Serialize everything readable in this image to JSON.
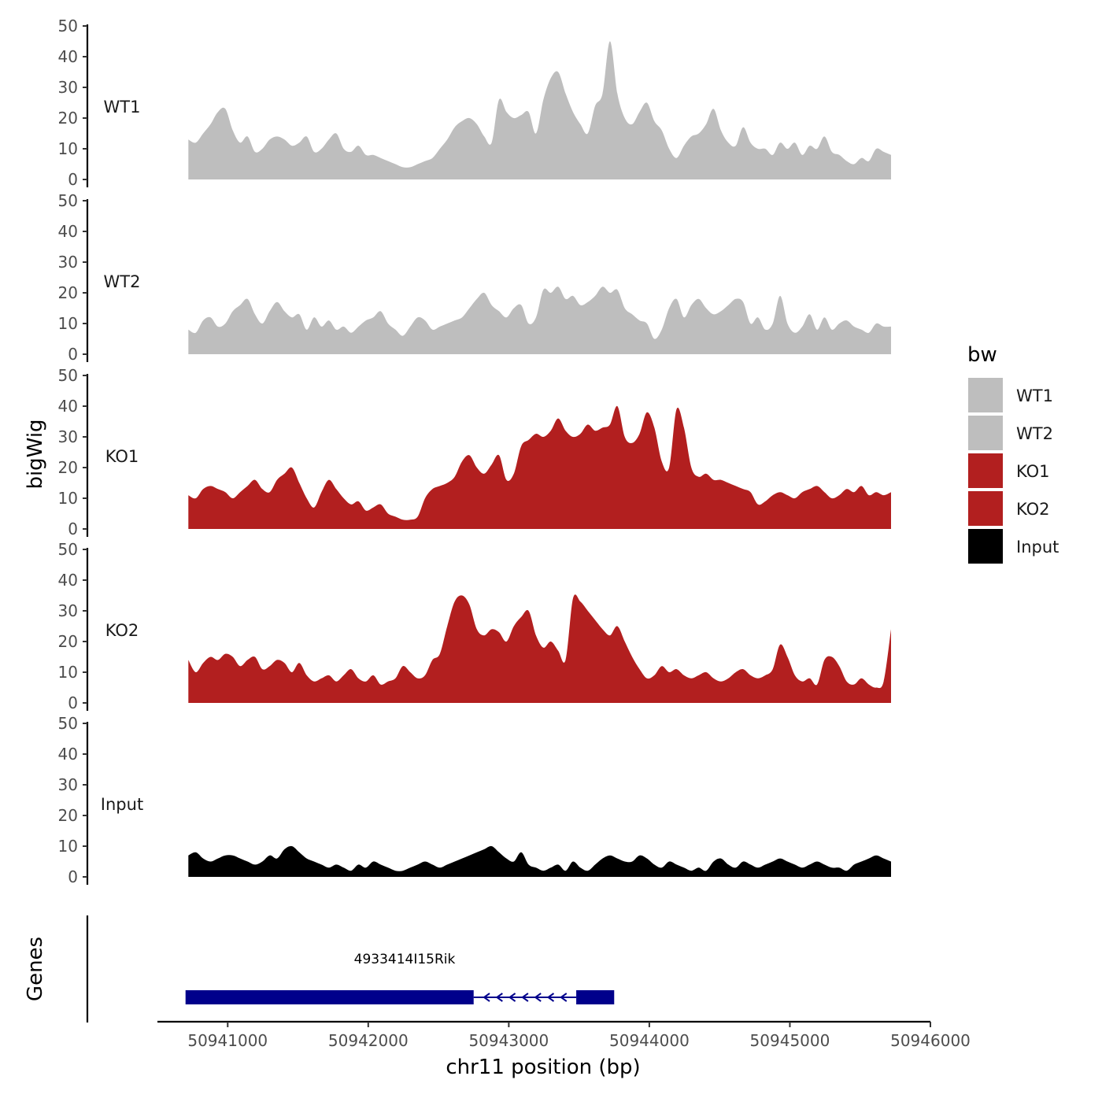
{
  "chart_data": {
    "type": "area",
    "colors": {
      "WT": "#bebebe",
      "KO": "#b21f1f",
      "Input": "#000000",
      "gene": "#00008b",
      "axis": "#000000"
    },
    "ylabel": "bigWig",
    "ylim": [
      0,
      50
    ],
    "yticks": [
      "0",
      "10",
      "20",
      "30",
      "40",
      "50"
    ],
    "xlim": [
      50940500,
      50946000
    ],
    "x_start": 50940720,
    "x_end": 50945720,
    "xticks": [
      50941000,
      50942000,
      50943000,
      50944000,
      50945000,
      50946000
    ],
    "xtick_labels": [
      "50941000",
      "50942000",
      "50943000",
      "50944000",
      "50945000",
      "50946000"
    ],
    "xlabel": "chr11 position (bp)",
    "series": [
      {
        "name": "WT1",
        "color": "#bebebe",
        "values": [
          13,
          12,
          15,
          18,
          22,
          23,
          16,
          12,
          14,
          9,
          10,
          13,
          14,
          13,
          11,
          12,
          14,
          9,
          10,
          13,
          15,
          10,
          9,
          11,
          8,
          8,
          7,
          6,
          5,
          4,
          4,
          5,
          6,
          7,
          10,
          13,
          17,
          19,
          20,
          18,
          14,
          12,
          26,
          22,
          20,
          21,
          22,
          15,
          26,
          33,
          35,
          28,
          22,
          18,
          15,
          24,
          28,
          45,
          28,
          20,
          18,
          22,
          25,
          19,
          16,
          10,
          7,
          11,
          14,
          15,
          18,
          23,
          16,
          12,
          11,
          17,
          12,
          10,
          10,
          8,
          12,
          10,
          12,
          8,
          11,
          10,
          14,
          9,
          8,
          6,
          5,
          7,
          6,
          10,
          9,
          8
        ]
      },
      {
        "name": "WT2",
        "color": "#bebebe",
        "values": [
          8,
          7,
          11,
          12,
          9,
          10,
          14,
          16,
          18,
          13,
          10,
          14,
          17,
          14,
          12,
          13,
          8,
          12,
          9,
          11,
          8,
          9,
          7,
          9,
          11,
          12,
          14,
          10,
          8,
          6,
          9,
          12,
          11,
          8,
          9,
          10,
          11,
          12,
          15,
          18,
          20,
          16,
          14,
          12,
          15,
          16,
          10,
          12,
          21,
          20,
          22,
          18,
          19,
          16,
          17,
          19,
          22,
          20,
          21,
          15,
          13,
          11,
          10,
          5,
          8,
          15,
          18,
          12,
          16,
          18,
          15,
          13,
          14,
          16,
          18,
          17,
          10,
          12,
          8,
          10,
          19,
          10,
          7,
          9,
          13,
          8,
          12,
          8,
          10,
          11,
          9,
          8,
          7,
          10,
          9,
          9
        ]
      },
      {
        "name": "KO1",
        "color": "#b21f1f",
        "values": [
          11,
          10,
          13,
          14,
          13,
          12,
          10,
          12,
          14,
          16,
          13,
          12,
          16,
          18,
          20,
          15,
          10,
          7,
          12,
          16,
          13,
          10,
          8,
          9,
          6,
          7,
          8,
          5,
          4,
          3,
          3,
          4,
          10,
          13,
          14,
          15,
          17,
          22,
          24,
          20,
          18,
          21,
          24,
          16,
          18,
          27,
          29,
          31,
          30,
          32,
          36,
          32,
          30,
          31,
          34,
          32,
          33,
          34,
          40,
          30,
          28,
          31,
          38,
          33,
          22,
          20,
          39,
          33,
          20,
          17,
          18,
          16,
          16,
          15,
          14,
          13,
          12,
          8,
          9,
          11,
          12,
          11,
          10,
          12,
          13,
          14,
          12,
          10,
          11,
          13,
          12,
          14,
          11,
          12,
          11,
          12
        ]
      },
      {
        "name": "KO2",
        "color": "#b21f1f",
        "values": [
          14,
          10,
          13,
          15,
          14,
          16,
          15,
          12,
          14,
          15,
          11,
          12,
          14,
          13,
          10,
          13,
          9,
          7,
          8,
          9,
          7,
          9,
          11,
          8,
          7,
          9,
          6,
          7,
          8,
          12,
          10,
          8,
          9,
          14,
          16,
          25,
          33,
          35,
          32,
          24,
          22,
          24,
          23,
          20,
          25,
          28,
          30,
          22,
          18,
          20,
          17,
          14,
          34,
          33,
          30,
          27,
          24,
          22,
          25,
          20,
          15,
          11,
          8,
          9,
          12,
          10,
          11,
          9,
          8,
          9,
          10,
          8,
          7,
          8,
          10,
          11,
          9,
          8,
          9,
          11,
          19,
          15,
          9,
          7,
          8,
          6,
          14,
          15,
          12,
          7,
          6,
          8,
          6,
          5,
          7,
          24
        ]
      },
      {
        "name": "Input",
        "color": "#000000",
        "values": [
          7,
          8,
          6,
          5,
          6,
          7,
          7,
          6,
          5,
          4,
          5,
          7,
          6,
          9,
          10,
          8,
          6,
          5,
          4,
          3,
          4,
          3,
          2,
          4,
          3,
          5,
          4,
          3,
          2,
          2,
          3,
          4,
          5,
          4,
          3,
          4,
          5,
          6,
          7,
          8,
          9,
          10,
          8,
          6,
          5,
          8,
          4,
          3,
          2,
          3,
          4,
          2,
          5,
          3,
          2,
          4,
          6,
          7,
          6,
          5,
          5,
          7,
          6,
          4,
          3,
          5,
          4,
          3,
          2,
          3,
          2,
          5,
          6,
          4,
          3,
          5,
          4,
          3,
          4,
          5,
          6,
          5,
          4,
          3,
          4,
          5,
          4,
          3,
          3,
          2,
          4,
          5,
          6,
          7,
          6,
          5
        ]
      }
    ],
    "legend": {
      "title": "bw",
      "entries": [
        "WT1",
        "WT2",
        "KO1",
        "KO2",
        "Input"
      ],
      "placement": "right"
    },
    "gene_track": {
      "label": "Genes",
      "gene_name": "4933414I15Rik",
      "exons": [
        [
          50940700,
          50942750
        ],
        [
          50943480,
          50943750
        ]
      ],
      "intron": [
        50942750,
        50943480
      ],
      "strand": "-"
    }
  }
}
